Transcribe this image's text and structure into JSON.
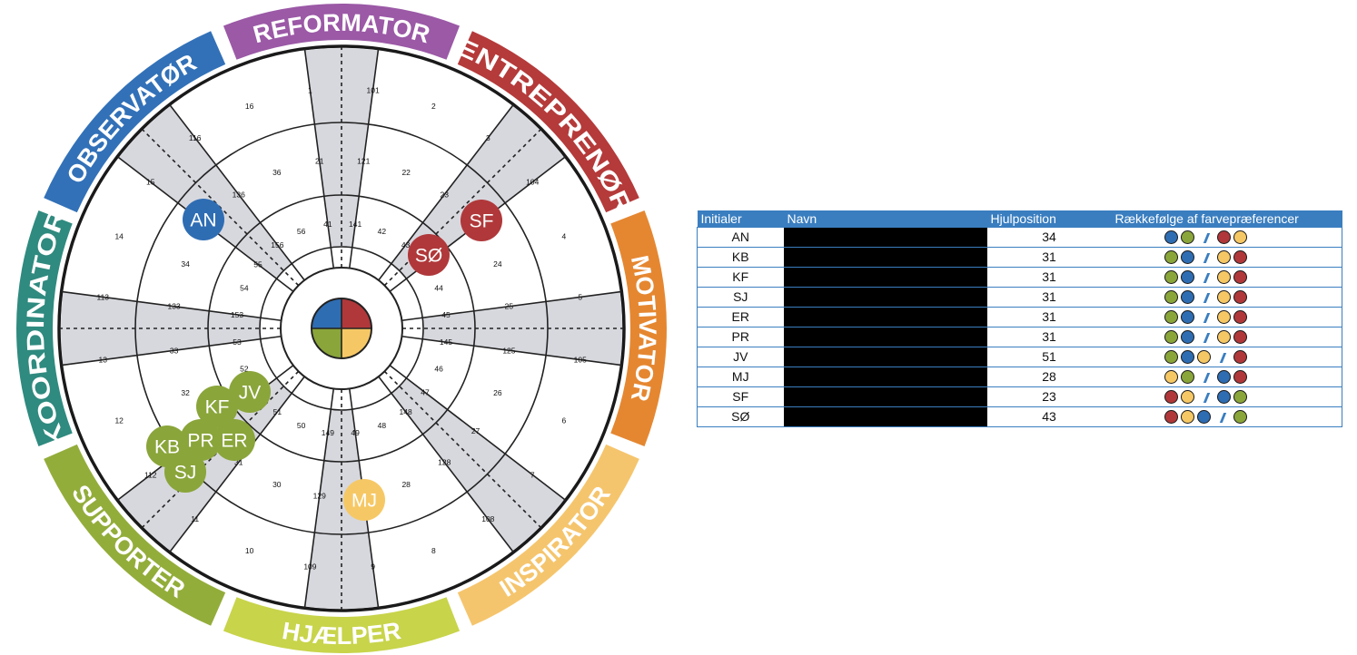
{
  "colors": {
    "blue": "#2f6db3",
    "green": "#8aa53a",
    "red": "#b0383a",
    "yellow": "#f6c865",
    "grey_sector": "#d7d8de",
    "table_header": "#3a7ec0"
  },
  "wheel": {
    "roles": [
      {
        "label": "REFORMATOR",
        "color": "#9b59a6"
      },
      {
        "label": "ENTREPRENØR",
        "color": "#b53a3a"
      },
      {
        "label": "MOTIVATOR",
        "color": "#e58731"
      },
      {
        "label": "INSPIRATOR",
        "color": "#f5c56d"
      },
      {
        "label": "HJÆLPER",
        "color": "#c8d44a"
      },
      {
        "label": "SUPPORTER",
        "color": "#93ad3b"
      },
      {
        "label": "KOORDINATOR",
        "color": "#2f8a7f"
      },
      {
        "label": "OBSERVATØR",
        "color": "#3271b8"
      }
    ],
    "sector_numbers": [
      {
        "ring": 4,
        "values": [
          "1",
          "101",
          "2",
          "3",
          "104",
          "4",
          "5",
          "105",
          "6",
          "7",
          "108",
          "8",
          "9",
          "109",
          "10",
          "11",
          "112",
          "12",
          "13",
          "113",
          "14",
          "15",
          "116",
          "16"
        ]
      },
      {
        "ring": 3,
        "values": [
          "21",
          "121",
          "22",
          "23",
          "124",
          "24",
          "25",
          "125",
          "26",
          "27",
          "128",
          "28",
          "29",
          "129",
          "30",
          "31",
          "132",
          "32",
          "33",
          "133",
          "34",
          "35",
          "136",
          "36"
        ]
      },
      {
        "ring": 2,
        "values": [
          "41",
          "141",
          "42",
          "43",
          "144",
          "44",
          "45",
          "145",
          "46",
          "47",
          "148",
          "48",
          "49",
          "149",
          "50",
          "51",
          "152",
          "52",
          "53",
          "153",
          "54",
          "55",
          "156",
          "56"
        ]
      }
    ],
    "markers": [
      {
        "label": "AN",
        "position": 34,
        "color": "#2f6db3"
      },
      {
        "label": "SF",
        "position": 23,
        "color": "#b0383a"
      },
      {
        "label": "SØ",
        "position": 43,
        "color": "#b0383a"
      },
      {
        "label": "JV",
        "position": 51,
        "color": "#8aa53a"
      },
      {
        "label": "KF",
        "position": 31,
        "color": "#8aa53a"
      },
      {
        "label": "PR",
        "position": 31,
        "color": "#8aa53a"
      },
      {
        "label": "ER",
        "position": 31,
        "color": "#8aa53a"
      },
      {
        "label": "KB",
        "position": 31,
        "color": "#8aa53a"
      },
      {
        "label": "SJ",
        "position": 31,
        "color": "#8aa53a"
      },
      {
        "label": "MJ",
        "position": 28,
        "color": "#f6c865"
      }
    ]
  },
  "table": {
    "headers": {
      "initials": "Initialer",
      "name": "Navn",
      "position": "Hjulposition",
      "preferences": "Rækkefølge af farvepræferencer"
    },
    "rows": [
      {
        "initials": "AN",
        "position": "34",
        "before": [
          "blue",
          "green"
        ],
        "after": [
          "red",
          "yellow"
        ]
      },
      {
        "initials": "KB",
        "position": "31",
        "before": [
          "green",
          "blue"
        ],
        "after": [
          "yellow",
          "red"
        ]
      },
      {
        "initials": "KF",
        "position": "31",
        "before": [
          "green",
          "blue"
        ],
        "after": [
          "yellow",
          "red"
        ]
      },
      {
        "initials": "SJ",
        "position": "31",
        "before": [
          "green",
          "blue"
        ],
        "after": [
          "yellow",
          "red"
        ]
      },
      {
        "initials": "ER",
        "position": "31",
        "before": [
          "green",
          "blue"
        ],
        "after": [
          "yellow",
          "red"
        ]
      },
      {
        "initials": "PR",
        "position": "31",
        "before": [
          "green",
          "blue"
        ],
        "after": [
          "yellow",
          "red"
        ]
      },
      {
        "initials": "JV",
        "position": "51",
        "before": [
          "green",
          "blue",
          "yellow"
        ],
        "after": [
          "red"
        ]
      },
      {
        "initials": "MJ",
        "position": "28",
        "before": [
          "yellow",
          "green"
        ],
        "after": [
          "blue",
          "red"
        ]
      },
      {
        "initials": "SF",
        "position": "23",
        "before": [
          "red",
          "yellow"
        ],
        "after": [
          "blue",
          "green"
        ]
      },
      {
        "initials": "SØ",
        "position": "43",
        "before": [
          "red",
          "yellow",
          "blue"
        ],
        "after": [
          "green"
        ]
      }
    ]
  }
}
